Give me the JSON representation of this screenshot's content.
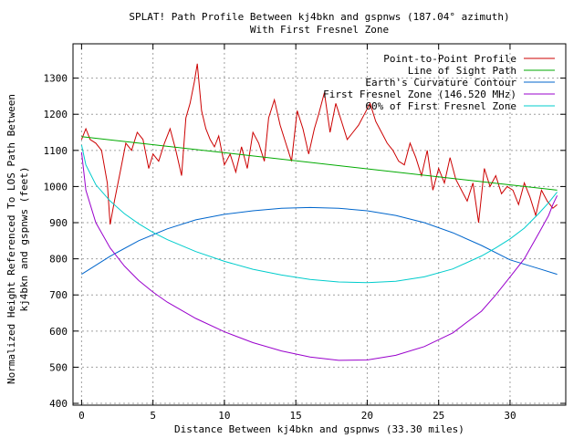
{
  "chart_data": {
    "type": "line",
    "title": "SPLAT! Path Profile Between kj4bkn and gspnws (187.04° azimuth)",
    "subtitle": "With First Fresnel Zone",
    "xlabel": "Distance Between kj4bkn and gspnws (33.30 miles)",
    "ylabel_line1": "Normalized Height Referenced To LOS Path Between",
    "ylabel_line2": "kj4bkn and gspnws (feet)",
    "xlim": [
      -0.6,
      33.9
    ],
    "ylim": [
      395,
      1395
    ],
    "xticks": [
      0,
      5,
      10,
      15,
      20,
      25,
      30
    ],
    "xtick_labels": [
      "0",
      "5",
      "10",
      "15",
      "20",
      "25",
      "30"
    ],
    "yticks": [
      400,
      500,
      600,
      700,
      800,
      900,
      1000,
      1100,
      1200,
      1300
    ],
    "ytick_labels": [
      "400",
      "500",
      "600",
      "700",
      "800",
      "900",
      "1000",
      "1100",
      "1200",
      "1300"
    ],
    "grid": true,
    "legend_position": "top-right",
    "series": [
      {
        "name": "Point-to-Point Profile",
        "color": "#cc0000",
        "x": [
          0,
          0.3,
          0.6,
          1.0,
          1.4,
          1.8,
          2.0,
          2.3,
          2.7,
          3.1,
          3.5,
          3.9,
          4.3,
          4.7,
          5.0,
          5.4,
          5.8,
          6.2,
          6.6,
          7.0,
          7.3,
          7.6,
          7.9,
          8.1,
          8.4,
          8.7,
          9.0,
          9.3,
          9.6,
          10.0,
          10.4,
          10.8,
          11.2,
          11.6,
          12.0,
          12.4,
          12.8,
          13.1,
          13.5,
          13.9,
          14.3,
          14.7,
          15.1,
          15.5,
          15.9,
          16.3,
          16.6,
          17.0,
          17.4,
          17.8,
          18.2,
          18.6,
          19.0,
          19.4,
          19.8,
          20.2,
          20.6,
          21.0,
          21.4,
          21.8,
          22.2,
          22.6,
          23.0,
          23.4,
          23.8,
          24.2,
          24.6,
          25.0,
          25.4,
          25.8,
          26.2,
          26.6,
          27.0,
          27.4,
          27.8,
          28.2,
          28.6,
          29.0,
          29.4,
          29.8,
          30.2,
          30.6,
          31.0,
          31.4,
          31.8,
          32.2,
          32.6,
          33.0,
          33.3
        ],
        "values": [
          1130,
          1160,
          1130,
          1120,
          1100,
          1010,
          895,
          960,
          1040,
          1120,
          1100,
          1150,
          1130,
          1050,
          1090,
          1070,
          1120,
          1160,
          1100,
          1030,
          1190,
          1230,
          1290,
          1340,
          1210,
          1160,
          1130,
          1110,
          1140,
          1060,
          1090,
          1040,
          1110,
          1050,
          1150,
          1120,
          1070,
          1190,
          1240,
          1170,
          1120,
          1070,
          1210,
          1160,
          1090,
          1160,
          1200,
          1260,
          1150,
          1230,
          1180,
          1130,
          1150,
          1170,
          1200,
          1230,
          1180,
          1150,
          1120,
          1100,
          1070,
          1060,
          1120,
          1080,
          1030,
          1100,
          990,
          1050,
          1010,
          1080,
          1020,
          990,
          960,
          1010,
          900,
          1050,
          1000,
          1030,
          980,
          1000,
          990,
          950,
          1010,
          970,
          920,
          990,
          960,
          940,
          950
        ]
      },
      {
        "name": "Line of Sight Path",
        "color": "#00aa00",
        "x": [
          0,
          33.3
        ],
        "values": [
          1138,
          990
        ]
      },
      {
        "name": "Earth's Curvature Contour",
        "color": "#0066cc",
        "x": [
          0,
          2,
          4,
          6,
          8,
          10,
          12,
          14,
          16,
          18,
          20,
          22,
          24,
          26,
          28,
          30,
          32,
          33.3
        ],
        "values": [
          757,
          807,
          850,
          883,
          908,
          923,
          933,
          940,
          942,
          940,
          933,
          920,
          900,
          872,
          837,
          797,
          773,
          757
        ]
      },
      {
        "name": "First Fresnel Zone (146.520 MHz)",
        "color": "#9900cc",
        "x": [
          0,
          0.3,
          1,
          2,
          3,
          4,
          5,
          6,
          8,
          10,
          12,
          14,
          16,
          18,
          20,
          22,
          24,
          26,
          28,
          29,
          30,
          31,
          32,
          32.7,
          33.0,
          33.3
        ],
        "values": [
          1095,
          990,
          900,
          830,
          780,
          740,
          708,
          680,
          635,
          598,
          568,
          545,
          528,
          519,
          520,
          533,
          557,
          595,
          655,
          700,
          750,
          800,
          870,
          920,
          950,
          975
        ]
      },
      {
        "name": "60% of First Fresnel Zone",
        "color": "#00cccc",
        "x": [
          0,
          0.3,
          1,
          2,
          3,
          4,
          5,
          6,
          8,
          10,
          12,
          14,
          16,
          18,
          20,
          22,
          24,
          26,
          28,
          29,
          30,
          31,
          32,
          32.7,
          33.0,
          33.3
        ],
        "values": [
          1115,
          1060,
          1005,
          960,
          925,
          897,
          873,
          853,
          820,
          793,
          771,
          755,
          743,
          736,
          734,
          738,
          750,
          772,
          808,
          830,
          855,
          885,
          925,
          955,
          970,
          985
        ]
      }
    ]
  }
}
